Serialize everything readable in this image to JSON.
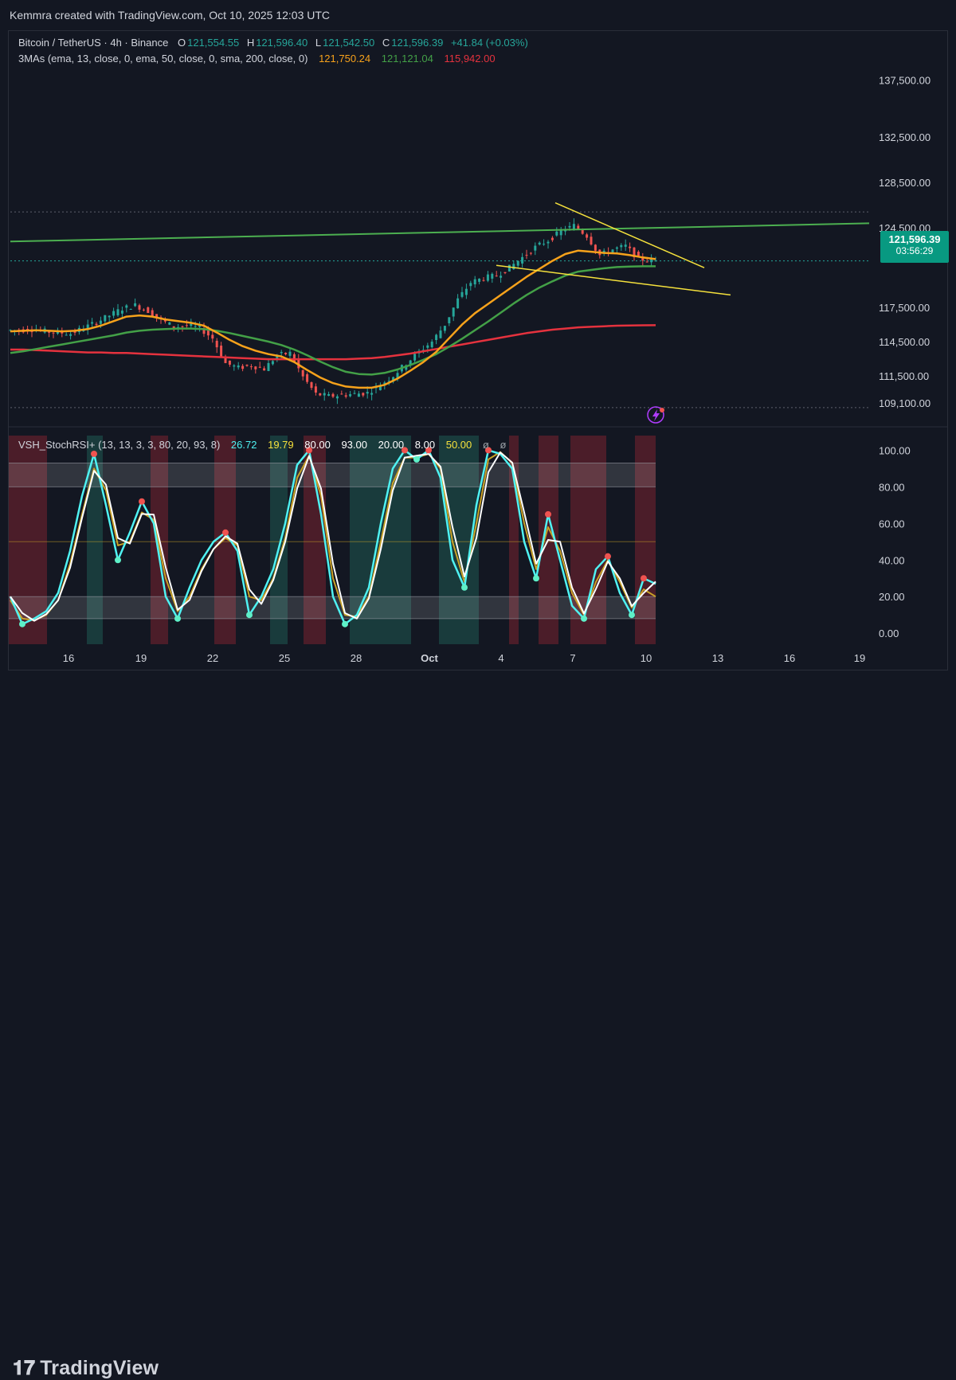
{
  "header": {
    "credit": "Kemmra created with TradingView.com, Oct 10, 2025 12:03 UTC"
  },
  "legend": {
    "symbol": "Bitcoin / TetherUS · 4h · Binance",
    "o_label": "O",
    "o_value": "121,554.55",
    "h_label": "H",
    "h_value": "121,596.40",
    "l_label": "L",
    "l_value": "121,542.50",
    "c_label": "C",
    "c_value": "121,596.39",
    "change": "+41.84 (+0.03%)",
    "ma_title": "3MAs (ema, 13, close, 0, ema, 50, close, 0, sma, 200, close, 0)",
    "ma1": "121,750.24",
    "ma2": "121,121.04",
    "ma3": "115,942.00",
    "ind_title": "VSH_StochRSI+ (13, 13, 3, 3, 80, 20, 93, 8)",
    "ind_v1": "26.72",
    "ind_v2": "19.79",
    "ind_v3": "80.00",
    "ind_v4": "93.00",
    "ind_v5": "20.00",
    "ind_v6": "8.00",
    "ind_v7": "50.00",
    "ind_v8": "ø",
    "ind_v9": "ø"
  },
  "price_tag": {
    "value": "121,596.39",
    "countdown": "03:56:29"
  },
  "colors": {
    "up": "#26a69a",
    "down": "#ef5350",
    "ema13": "#f7a21b",
    "ema50": "#43a047",
    "sma200": "#e5323e",
    "trend_green": "#4caf50",
    "wedge": "#f5e13c",
    "k_line": "#4ff2f2",
    "d_line": "#c9a227",
    "signal": "#ffffff"
  },
  "footer": {
    "brand": "TradingView"
  },
  "chart_data": [
    {
      "type": "candlestick",
      "yaxis_ticks": [
        "137,500.00",
        "132,500.00",
        "128,500.00",
        "124,500.00",
        "117,500.00",
        "114,500.00",
        "111,500.00",
        "109,100.00"
      ],
      "yaxis_tick_values": [
        137500,
        132500,
        128500,
        124500,
        117500,
        114500,
        111500,
        109100
      ],
      "xaxis_ticks": [
        "16",
        "19",
        "22",
        "25",
        "28",
        "Oct",
        "4",
        "7",
        "10",
        "13",
        "16",
        "19"
      ],
      "close_series": [
        115500,
        115600,
        115400,
        115300,
        115200,
        115700,
        116200,
        116800,
        117400,
        117700,
        117200,
        116400,
        115800,
        115900,
        115700,
        114800,
        112600,
        112200,
        112400,
        112100,
        113300,
        113500,
        111400,
        109900,
        109700,
        109800,
        109900,
        110000,
        110700,
        111500,
        112600,
        113600,
        114500,
        116000,
        118200,
        119700,
        120100,
        120300,
        121000,
        121900,
        122800,
        123400,
        124200,
        124700,
        123800,
        122100,
        122600,
        122900,
        121800,
        121600,
        121600
      ],
      "ema13": [
        115400,
        115450,
        115500,
        115450,
        115400,
        115450,
        115600,
        115900,
        116300,
        116700,
        116800,
        116700,
        116450,
        116300,
        116150,
        115900,
        115300,
        114650,
        114100,
        113700,
        113400,
        113200,
        112700,
        112000,
        111350,
        110850,
        110550,
        110450,
        110450,
        110700,
        111250,
        111950,
        112700,
        113600,
        114800,
        116000,
        117000,
        117800,
        118600,
        119400,
        120200,
        120900,
        121600,
        122200,
        122500,
        122400,
        122300,
        122250,
        122100,
        121900,
        121750
      ],
      "ema50": [
        113500,
        113650,
        113850,
        114050,
        114250,
        114450,
        114650,
        114850,
        115050,
        115300,
        115450,
        115550,
        115600,
        115650,
        115650,
        115600,
        115450,
        115250,
        115000,
        114750,
        114500,
        114200,
        113800,
        113300,
        112750,
        112250,
        111850,
        111650,
        111600,
        111750,
        112050,
        112450,
        112900,
        113400,
        114050,
        114750,
        115500,
        116250,
        117050,
        117850,
        118600,
        119250,
        119800,
        120300,
        120650,
        120800,
        120950,
        121050,
        121100,
        121120,
        121121
      ],
      "sma200": [
        113800,
        113800,
        113750,
        113700,
        113650,
        113600,
        113550,
        113550,
        113500,
        113500,
        113450,
        113400,
        113350,
        113300,
        113250,
        113200,
        113150,
        113100,
        113050,
        113000,
        112950,
        112950,
        112950,
        112950,
        112950,
        112950,
        112950,
        113000,
        113050,
        113150,
        113300,
        113450,
        113650,
        113850,
        114050,
        114250,
        114450,
        114650,
        114850,
        115050,
        115250,
        115400,
        115550,
        115650,
        115750,
        115800,
        115850,
        115900,
        115920,
        115935,
        115942
      ],
      "horizontal_levels": [
        125900,
        121596,
        108700
      ]
    },
    {
      "type": "line",
      "title": "VSH_StochRSI+",
      "yaxis_ticks": [
        "100.00",
        "80.00",
        "60.00",
        "40.00",
        "20.00",
        "0.00"
      ],
      "yaxis_tick_values": [
        100,
        80,
        60,
        40,
        20,
        0
      ],
      "series": [
        {
          "name": "K",
          "values": [
            20,
            5,
            8,
            12,
            22,
            45,
            75,
            98,
            70,
            40,
            55,
            72,
            60,
            20,
            8,
            25,
            40,
            50,
            55,
            45,
            10,
            20,
            35,
            60,
            92,
            100,
            65,
            20,
            5,
            10,
            25,
            60,
            90,
            100,
            95,
            100,
            85,
            40,
            25,
            70,
            100,
            98,
            90,
            50,
            30,
            65,
            40,
            15,
            8,
            35,
            42,
            22,
            10,
            30,
            27
          ]
        },
        {
          "name": "D",
          "values": [
            18,
            8,
            7,
            10,
            18,
            38,
            65,
            90,
            78,
            48,
            50,
            66,
            62,
            30,
            12,
            20,
            35,
            46,
            52,
            48,
            20,
            18,
            30,
            52,
            85,
            97,
            75,
            30,
            10,
            9,
            20,
            50,
            82,
            96,
            96,
            98,
            90,
            50,
            28,
            60,
            95,
            99,
            93,
            60,
            35,
            58,
            45,
            22,
            10,
            28,
            40,
            28,
            14,
            24,
            20
          ]
        }
      ],
      "bands": [
        [
          20,
          8
        ],
        [
          93,
          80
        ]
      ],
      "midline": 50
    }
  ]
}
